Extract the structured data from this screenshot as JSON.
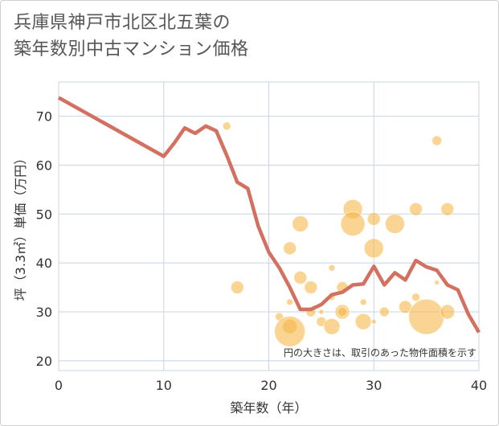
{
  "title_line1": "兵庫県神戸市北区北五葉の",
  "title_line2": "築年数別中古マンション価格",
  "note": "円の大きさは、取引のあった物件面積を示す",
  "colors": {
    "line": "#d47060",
    "bubble_fill": "#f5b849",
    "grid": "#c8d4e3",
    "background": "#ffffff"
  },
  "chart_data": {
    "type": "scatter",
    "title": "兵庫県神戸市北区北五葉の築年数別中古マンション価格",
    "xlabel": "築年数（年）",
    "ylabel": "坪（3.3㎡）単価（万円）",
    "xlim": [
      0,
      40
    ],
    "ylim": [
      18,
      77
    ],
    "x_ticks": [
      0,
      10,
      20,
      30,
      40
    ],
    "y_ticks": [
      20,
      30,
      40,
      50,
      60,
      70
    ],
    "grid": true,
    "line": {
      "x": [
        0,
        10,
        11,
        12,
        13,
        14,
        15,
        16,
        17,
        18,
        19,
        20,
        21,
        22,
        23,
        24,
        25,
        26,
        27,
        28,
        29,
        30,
        31,
        32,
        33,
        34,
        35,
        36,
        37,
        38,
        39,
        40
      ],
      "y": [
        73.8,
        61.8,
        64.5,
        67.6,
        66.5,
        68.0,
        67.0,
        62.0,
        56.5,
        55.2,
        47.5,
        42.2,
        39.0,
        35.0,
        30.5,
        30.5,
        31.5,
        33.5,
        34.0,
        35.5,
        35.7,
        39.3,
        35.5,
        38.0,
        36.5,
        40.5,
        39.2,
        38.5,
        35.5,
        34.5,
        29.5,
        25.8
      ]
    },
    "bubbles": [
      {
        "x": 16,
        "y": 68,
        "size": 5
      },
      {
        "x": 17,
        "y": 35,
        "size": 8
      },
      {
        "x": 21,
        "y": 29,
        "size": 5
      },
      {
        "x": 22,
        "y": 43,
        "size": 8
      },
      {
        "x": 22,
        "y": 32,
        "size": 4
      },
      {
        "x": 22,
        "y": 27,
        "size": 9
      },
      {
        "x": 22,
        "y": 26,
        "size": 19
      },
      {
        "x": 23,
        "y": 48,
        "size": 10
      },
      {
        "x": 23,
        "y": 37,
        "size": 8
      },
      {
        "x": 24,
        "y": 35,
        "size": 8
      },
      {
        "x": 24,
        "y": 30,
        "size": 6
      },
      {
        "x": 25,
        "y": 28,
        "size": 6
      },
      {
        "x": 25,
        "y": 30,
        "size": 3
      },
      {
        "x": 26,
        "y": 39,
        "size": 4
      },
      {
        "x": 26,
        "y": 33,
        "size": 4
      },
      {
        "x": 26,
        "y": 27,
        "size": 10
      },
      {
        "x": 27,
        "y": 35,
        "size": 7
      },
      {
        "x": 27,
        "y": 30,
        "size": 9
      },
      {
        "x": 27,
        "y": 30,
        "size": 6
      },
      {
        "x": 28,
        "y": 51,
        "size": 12
      },
      {
        "x": 28,
        "y": 48,
        "size": 15
      },
      {
        "x": 29,
        "y": 32,
        "size": 4
      },
      {
        "x": 29,
        "y": 28,
        "size": 10
      },
      {
        "x": 30,
        "y": 49,
        "size": 8
      },
      {
        "x": 30,
        "y": 43,
        "size": 12
      },
      {
        "x": 30,
        "y": 28,
        "size": 3
      },
      {
        "x": 31,
        "y": 30,
        "size": 6
      },
      {
        "x": 32,
        "y": 48,
        "size": 12
      },
      {
        "x": 33,
        "y": 31,
        "size": 8
      },
      {
        "x": 34,
        "y": 51,
        "size": 8
      },
      {
        "x": 34,
        "y": 33,
        "size": 5
      },
      {
        "x": 35,
        "y": 29,
        "size": 22
      },
      {
        "x": 36,
        "y": 65,
        "size": 6
      },
      {
        "x": 36,
        "y": 36,
        "size": 3
      },
      {
        "x": 37,
        "y": 51,
        "size": 8
      },
      {
        "x": 37,
        "y": 30,
        "size": 9
      }
    ]
  }
}
